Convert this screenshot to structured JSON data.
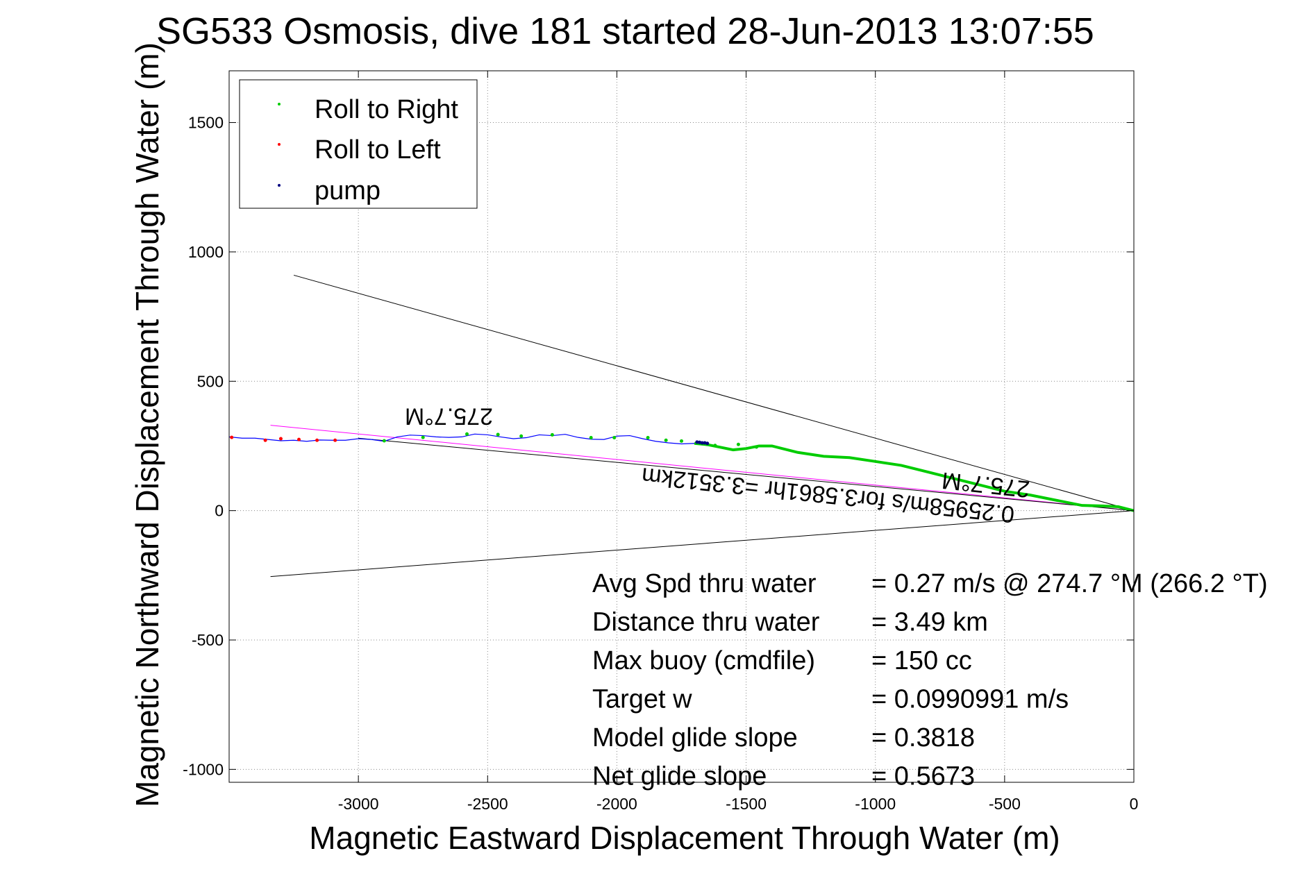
{
  "chart_data": {
    "type": "line",
    "title": "SG533 Osmosis, dive 181 started 28-Jun-2013 13:07:55",
    "xlabel": "Magnetic Eastward Displacement Through Water (m)",
    "ylabel": "Magnetic Northward Displacement Through Water (m)",
    "xlim": [
      -3500,
      0
    ],
    "ylim": [
      -1050,
      1700
    ],
    "xticks": [
      -3000,
      -2500,
      -2000,
      -1500,
      -1000,
      -500,
      0
    ],
    "xtick_labels": [
      "-3000",
      "-2500",
      "-2000",
      "-1500",
      "-1000",
      "-500",
      "0"
    ],
    "yticks": [
      1500,
      1000,
      500,
      0,
      -500,
      -1000
    ],
    "ytick_labels": [
      "1500",
      "1000",
      "500",
      "0",
      "-500",
      "-1000"
    ],
    "grid": true,
    "legend_position": "top-left",
    "legend": [
      {
        "label": "Roll to Right",
        "color": "#00cc00",
        "marker": "dot"
      },
      {
        "label": "Roll to Left",
        "color": "#ff0000",
        "marker": "dot"
      },
      {
        "label": "pump",
        "color": "#000080",
        "marker": "dot"
      }
    ],
    "track": {
      "name": "track",
      "color": "#0000ff",
      "x": [
        0,
        -60,
        -120,
        -200,
        -300,
        -400,
        -500,
        -600,
        -700,
        -800,
        -900,
        -1000,
        -1100,
        -1200,
        -1300,
        -1400,
        -1450,
        -1500,
        -1550,
        -1600,
        -1650,
        -1700,
        -1750,
        -1800,
        -1850,
        -1900,
        -1950,
        -2000,
        -2050,
        -2100,
        -2150,
        -2200,
        -2250,
        -2300,
        -2350,
        -2400,
        -2450,
        -2500,
        -2550,
        -2600,
        -2650,
        -2700,
        -2750,
        -2800,
        -2850,
        -2900,
        -2950,
        -3000,
        -3050,
        -3100,
        -3150,
        -3200,
        -3250,
        -3300,
        -3350,
        -3400,
        -3450,
        -3500
      ],
      "y": [
        0,
        15,
        18,
        20,
        40,
        60,
        75,
        100,
        125,
        150,
        175,
        190,
        205,
        210,
        225,
        250,
        250,
        240,
        235,
        245,
        255,
        260,
        258,
        262,
        268,
        278,
        290,
        288,
        275,
        276,
        283,
        295,
        290,
        293,
        282,
        278,
        285,
        293,
        296,
        285,
        283,
        285,
        290,
        292,
        285,
        268,
        275,
        278,
        272,
        272,
        273,
        268,
        272,
        270,
        275,
        280,
        280,
        285
      ]
    },
    "green_segment": {
      "x_range": [
        0,
        -1700
      ],
      "color": "#00cc00"
    },
    "roll_right_points": {
      "color": "#00cc00",
      "x": [
        -2900,
        -2750,
        -2580,
        -2460,
        -2370,
        -2250,
        -2100,
        -2010,
        -1880,
        -1810,
        -1750,
        -1620,
        -1530,
        -1460
      ],
      "y": [
        270,
        283,
        296,
        294,
        288,
        293,
        282,
        282,
        282,
        272,
        269,
        252,
        256,
        246
      ]
    },
    "roll_left_points": {
      "color": "#ff0000",
      "x": [
        -3490,
        -3360,
        -3300,
        -3230,
        -3160,
        -3090
      ],
      "y": [
        283,
        272,
        278,
        275,
        272,
        272
      ]
    },
    "pump_points": {
      "color": "#000080",
      "x": [
        -1690,
        -1680,
        -1670,
        -1660,
        -1650
      ],
      "y": [
        265,
        264,
        262,
        262,
        260
      ]
    },
    "ref_lines": [
      {
        "name": "upper-bound-line",
        "color": "#000000",
        "x": [
          0,
          -3250
        ],
        "y": [
          0,
          910
        ]
      },
      {
        "name": "lower-bound-line",
        "color": "#000000",
        "x": [
          0,
          -3340
        ],
        "y": [
          0,
          -255
        ]
      },
      {
        "name": "heading-line-magenta",
        "color": "#ff00ff",
        "x": [
          0,
          -3340
        ],
        "y": [
          0,
          330
        ]
      },
      {
        "name": "heading-line-black",
        "color": "#000000",
        "x": [
          0,
          -3000
        ],
        "y": [
          0,
          280
        ]
      }
    ],
    "annotations": [
      {
        "name": "heading-label-upper",
        "text": "275.7°M",
        "x": -2650,
        "y": 395,
        "rotation": 180
      },
      {
        "name": "heading-label-lower",
        "text": "275.7°M",
        "x": -570,
        "y": 130,
        "rotation": 186
      },
      {
        "name": "speed-label",
        "text": "0.25958m/s for3.5861hr =3.3512km",
        "x": -1180,
        "y": 90,
        "rotation": 186
      }
    ],
    "stats": [
      {
        "label": "Avg Spd thru water",
        "value": "=  0.27 m/s @ 274.7 °M (266.2 °T)"
      },
      {
        "label": "Distance thru water",
        "value": "=  3.49 km"
      },
      {
        "label": "Max buoy (cmdfile)",
        "value": "= 150 cc"
      },
      {
        "label": "Target w",
        "value": "= 0.0990991 m/s"
      },
      {
        "label": "Model glide slope",
        "value": "= 0.3818"
      },
      {
        "label": "Net glide slope",
        "value": "= 0.5673"
      }
    ]
  }
}
